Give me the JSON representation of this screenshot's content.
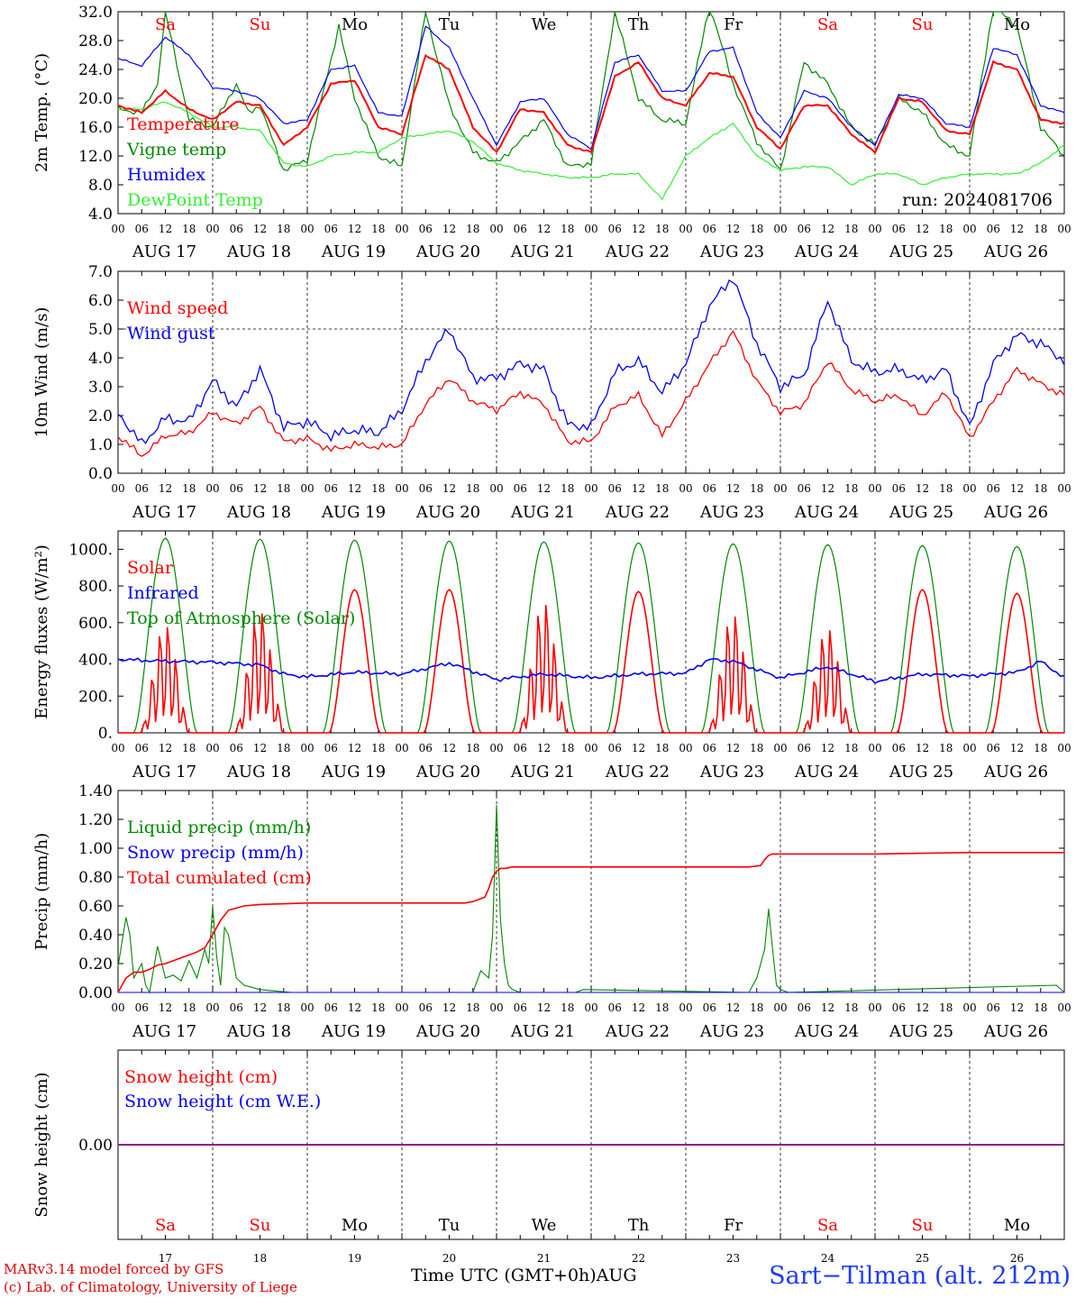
{
  "run_label": "run: 2024081706",
  "footer": {
    "credit_line1": "MARv3.14 model forced by GFS",
    "credit_line2": "(c) Lab. of Climatology, University of Liege",
    "xaxis_title": "Time UTC (GMT+0h)",
    "xaxis_month": "AUG",
    "station": "Sart−Tilman (alt. 212m)"
  },
  "colors": {
    "red": "#ff0000",
    "green": "#008800",
    "blue": "#0000ff",
    "light_green": "#33ee33",
    "weekend": "#ff0000",
    "weekday": "#000000",
    "snow_line": "#800080"
  },
  "chart_data": [
    {
      "type": "line",
      "id": "temperature",
      "ylabel": "2m Temp. (°C)",
      "ylim": [
        4,
        32
      ],
      "yticks": [
        "4.0",
        "8.0",
        "12.0",
        "16.0",
        "20.0",
        "24.0",
        "28.0",
        "32.0"
      ],
      "day_names": [
        "Sa",
        "Su",
        "Mo",
        "Tu",
        "We",
        "Th",
        "Fr",
        "Sa",
        "Su",
        "Mo"
      ],
      "weekend_flags": [
        true,
        true,
        false,
        false,
        false,
        false,
        false,
        true,
        true,
        false
      ],
      "x_unit": "hours since 2024-08-17 00 UTC",
      "series": [
        {
          "name": "Temperature",
          "color": "red",
          "x": [
            0,
            6,
            12,
            18,
            24,
            30,
            36,
            42,
            48,
            54,
            60,
            66,
            72,
            78,
            84,
            90,
            96,
            102,
            108,
            114,
            120,
            126,
            132,
            138,
            144,
            150,
            156,
            162,
            168,
            174,
            180,
            186,
            192,
            198,
            204,
            210,
            216,
            222,
            228,
            234,
            240
          ],
          "y": [
            19,
            18,
            21,
            18.5,
            17,
            19.5,
            19,
            13.5,
            16,
            22,
            22.5,
            16,
            15,
            26,
            24,
            16,
            12.5,
            18.5,
            18,
            13.5,
            12.5,
            23,
            25,
            20,
            19,
            23.5,
            23,
            16,
            13,
            19,
            19,
            15,
            12.5,
            20,
            19.5,
            15.5,
            15,
            25,
            24,
            17,
            16.5
          ]
        },
        {
          "name": "Vigne temp",
          "color": "green",
          "x": [
            0,
            6,
            10,
            12,
            18,
            24,
            30,
            33,
            36,
            42,
            48,
            56,
            60,
            66,
            72,
            78,
            84,
            90,
            96,
            108,
            114,
            120,
            126,
            132,
            138,
            144,
            150,
            156,
            162,
            168,
            174,
            180,
            186,
            192,
            198,
            204,
            210,
            216,
            222,
            228,
            234,
            240
          ],
          "y": [
            18.5,
            18,
            22,
            32,
            17,
            16,
            22,
            18,
            19,
            10,
            11.5,
            30,
            20,
            12,
            10.5,
            32,
            19,
            12.5,
            11,
            17,
            10.5,
            11,
            32,
            20,
            17,
            16.5,
            33,
            22,
            14,
            10,
            25,
            22,
            16,
            13.5,
            20,
            18,
            13.5,
            12,
            33,
            30,
            16,
            12
          ]
        },
        {
          "name": "Humidex",
          "color": "blue",
          "x": [
            0,
            6,
            12,
            18,
            24,
            30,
            36,
            42,
            48,
            54,
            60,
            66,
            72,
            78,
            84,
            90,
            96,
            102,
            108,
            114,
            120,
            126,
            132,
            138,
            144,
            150,
            156,
            162,
            168,
            174,
            180,
            186,
            192,
            198,
            204,
            210,
            216,
            222,
            228,
            234,
            240
          ],
          "y": [
            25.5,
            24.5,
            28.5,
            26,
            21.5,
            21,
            20,
            16.5,
            17,
            24,
            24.5,
            18,
            17.5,
            30,
            27,
            20,
            13.5,
            19.5,
            20,
            15,
            13,
            25,
            26,
            21,
            21,
            26.5,
            27,
            18,
            14.5,
            21,
            20,
            16,
            13.5,
            20.5,
            20,
            16.5,
            16,
            27,
            26,
            19,
            18
          ]
        },
        {
          "name": "DewPoint Temp",
          "color": "light_green",
          "x": [
            0,
            6,
            12,
            18,
            24,
            30,
            36,
            42,
            48,
            54,
            60,
            66,
            72,
            78,
            84,
            90,
            96,
            102,
            108,
            114,
            120,
            126,
            132,
            138,
            144,
            150,
            156,
            162,
            168,
            174,
            180,
            186,
            192,
            198,
            204,
            210,
            216,
            222,
            228,
            234,
            240
          ],
          "y": [
            18.5,
            18.5,
            19.5,
            18,
            16,
            16,
            15.5,
            11,
            10.5,
            12,
            12.5,
            12.5,
            14.5,
            15,
            15.5,
            14,
            11,
            10,
            9.5,
            9,
            9,
            9.5,
            9.5,
            6,
            12,
            14.5,
            16.5,
            12,
            10,
            10.5,
            10.5,
            8,
            9.5,
            9.5,
            8,
            9,
            9.5,
            9.5,
            9.5,
            11,
            13.5
          ]
        }
      ]
    },
    {
      "type": "line",
      "id": "wind",
      "ylabel": "10m Wind (m/s)",
      "ylim": [
        0,
        7
      ],
      "yticks": [
        "0.0",
        "1.0",
        "2.0",
        "3.0",
        "4.0",
        "5.0",
        "6.0",
        "7.0"
      ],
      "reference_line": 5,
      "x_unit": "hours since 2024-08-17 00 UTC",
      "series": [
        {
          "name": "Wind speed",
          "color": "red",
          "x": [
            0,
            6,
            12,
            18,
            24,
            30,
            36,
            42,
            48,
            54,
            60,
            66,
            72,
            78,
            84,
            90,
            96,
            102,
            108,
            114,
            120,
            126,
            132,
            138,
            144,
            150,
            156,
            162,
            168,
            174,
            180,
            186,
            192,
            198,
            204,
            210,
            216,
            222,
            228,
            234,
            240
          ],
          "y": [
            1.3,
            0.6,
            1.3,
            1.4,
            2.1,
            1.7,
            2.3,
            1.1,
            1.2,
            0.8,
            1.0,
            0.9,
            1.0,
            2.4,
            3.3,
            2.5,
            2.2,
            2.8,
            2.4,
            1.1,
            1.1,
            2.3,
            2.7,
            1.3,
            2.5,
            3.8,
            4.9,
            3.2,
            2.1,
            2.4,
            3.9,
            2.9,
            2.5,
            2.7,
            2.0,
            2.8,
            1.2,
            2.5,
            3.6,
            3.1,
            2.7
          ]
        },
        {
          "name": "Wind gust",
          "color": "blue",
          "x": [
            0,
            6,
            12,
            18,
            24,
            30,
            36,
            42,
            48,
            54,
            60,
            66,
            72,
            78,
            84,
            90,
            96,
            102,
            108,
            114,
            120,
            126,
            132,
            138,
            144,
            150,
            156,
            162,
            168,
            174,
            180,
            186,
            192,
            198,
            204,
            210,
            216,
            222,
            228,
            234,
            240
          ],
          "y": [
            2.1,
            1.0,
            1.9,
            1.8,
            3.2,
            2.3,
            3.6,
            1.6,
            1.8,
            1.3,
            1.5,
            1.4,
            2.2,
            3.9,
            5.0,
            3.3,
            3.3,
            3.8,
            3.6,
            1.7,
            1.6,
            3.5,
            3.9,
            2.8,
            3.8,
            5.8,
            6.8,
            4.5,
            3.0,
            3.4,
            6.0,
            3.9,
            3.5,
            3.6,
            3.2,
            3.6,
            1.6,
            3.8,
            4.8,
            4.5,
            3.9
          ]
        }
      ]
    },
    {
      "type": "line",
      "id": "energy",
      "ylabel": "Energy fluxes (W/m²)",
      "ylim": [
        0,
        1100
      ],
      "yticks": [
        "0.",
        "200.",
        "400.",
        "600.",
        "800.",
        "1000."
      ],
      "x_unit": "hours since 2024-08-17 00 UTC",
      "series": [
        {
          "name": "Solar",
          "color": "red",
          "daily_peak": [
            620,
            700,
            780,
            780,
            750,
            770,
            680,
            600,
            780,
            760
          ]
        },
        {
          "name": "Infrared",
          "color": "blue",
          "x": [
            0,
            12,
            24,
            36,
            42,
            48,
            60,
            72,
            84,
            96,
            108,
            120,
            132,
            144,
            150,
            156,
            168,
            180,
            192,
            204,
            216,
            228,
            234,
            240
          ],
          "y": [
            400,
            390,
            385,
            370,
            320,
            305,
            330,
            320,
            380,
            290,
            320,
            300,
            320,
            325,
            400,
            390,
            300,
            360,
            280,
            320,
            310,
            330,
            390,
            300
          ]
        },
        {
          "name": "Top of Atmosphere (Solar)",
          "color": "green",
          "daily_peak": [
            1060,
            1055,
            1050,
            1045,
            1040,
            1035,
            1030,
            1025,
            1020,
            1015
          ]
        }
      ]
    },
    {
      "type": "line",
      "id": "precip",
      "ylabel": "Precip (mm/h)",
      "ylim": [
        0,
        1.4
      ],
      "yticks": [
        "0.00",
        "0.20",
        "0.40",
        "0.60",
        "0.80",
        "1.00",
        "1.20",
        "1.40"
      ],
      "x_unit": "hours since 2024-08-17 00 UTC",
      "series": [
        {
          "name": "Liquid precip (mm/h)",
          "color": "green",
          "x": [
            0,
            2,
            3,
            4,
            6,
            7,
            8,
            10,
            12,
            14,
            16,
            18,
            20,
            22,
            23,
            24,
            25,
            26,
            27,
            28,
            30,
            32,
            36,
            40,
            44,
            90,
            92,
            94,
            95,
            96,
            97,
            98,
            99,
            100,
            102,
            116,
            118,
            160,
            162,
            164,
            165,
            166,
            167,
            168,
            170,
            238,
            240
          ],
          "y": [
            0.18,
            0.52,
            0.4,
            0.1,
            0.2,
            0.05,
            0.0,
            0.32,
            0.1,
            0.12,
            0.08,
            0.22,
            0.1,
            0.3,
            0.2,
            0.6,
            0.25,
            0.05,
            0.45,
            0.4,
            0.1,
            0.05,
            0.02,
            0.01,
            0.0,
            0.0,
            0.15,
            0.1,
            0.4,
            1.3,
            0.5,
            0.2,
            0.05,
            0.02,
            0.0,
            0.0,
            0.02,
            0.0,
            0.1,
            0.3,
            0.58,
            0.3,
            0.05,
            0.02,
            0.0,
            0.05,
            0.0
          ]
        },
        {
          "name": "Snow precip (mm/h)",
          "color": "blue",
          "x": [
            0,
            240
          ],
          "y": [
            0,
            0
          ]
        },
        {
          "name": "Total cumulated (cm)",
          "color": "red",
          "x": [
            0,
            2,
            4,
            6,
            8,
            10,
            12,
            16,
            20,
            22,
            24,
            26,
            28,
            32,
            36,
            48,
            72,
            88,
            90,
            93,
            94,
            95,
            96,
            97,
            98,
            100,
            120,
            144,
            160,
            163,
            164,
            165,
            166,
            168,
            192,
            216,
            240
          ],
          "y": [
            0.0,
            0.1,
            0.14,
            0.14,
            0.16,
            0.19,
            0.2,
            0.24,
            0.28,
            0.31,
            0.4,
            0.5,
            0.57,
            0.6,
            0.61,
            0.62,
            0.62,
            0.62,
            0.63,
            0.66,
            0.72,
            0.8,
            0.84,
            0.86,
            0.86,
            0.87,
            0.87,
            0.87,
            0.87,
            0.88,
            0.92,
            0.95,
            0.96,
            0.96,
            0.96,
            0.97,
            0.97
          ]
        }
      ]
    },
    {
      "type": "line",
      "id": "snow",
      "ylabel": "Snow height (cm)",
      "yticks": [
        "0.00"
      ],
      "x_unit": "hours since 2024-08-17 00 UTC",
      "series": [
        {
          "name": "Snow height (cm)",
          "color": "red",
          "x": [
            0,
            240
          ],
          "y": [
            0,
            0
          ]
        },
        {
          "name": "Snow height (cm W.E.)",
          "color": "blue",
          "x": [
            0,
            240
          ],
          "y": [
            0,
            0
          ]
        }
      ]
    }
  ],
  "x_axis": {
    "hour_labels": [
      "00",
      "06",
      "12",
      "18"
    ],
    "day_labels": [
      "AUG 17",
      "AUG 18",
      "AUG 19",
      "AUG 20",
      "AUG 21",
      "AUG 22",
      "AUG 23",
      "AUG 24",
      "AUG 25",
      "AUG 26"
    ],
    "day_names": [
      "Sa",
      "Su",
      "Mo",
      "Tu",
      "We",
      "Th",
      "Fr",
      "Sa",
      "Su",
      "Mo"
    ],
    "day_numbers": [
      "17",
      "18",
      "19",
      "20",
      "21",
      "22",
      "23",
      "24",
      "25",
      "26"
    ]
  }
}
